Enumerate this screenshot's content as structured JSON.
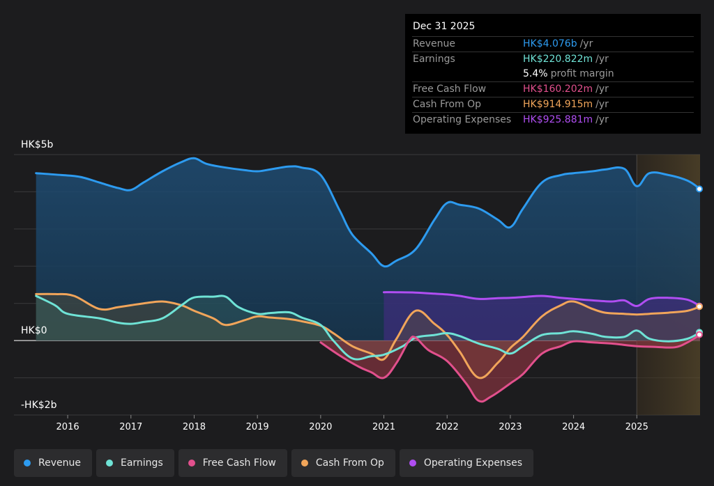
{
  "tooltip": {
    "date": "Dec 31 2025",
    "rows": [
      {
        "label": "Revenue",
        "value": "HK$4.076b",
        "unit": "/yr",
        "color": "#2d9bf0"
      },
      {
        "label": "Earnings",
        "value": "HK$220.822m",
        "unit": "/yr",
        "color": "#6fe3d6"
      },
      {
        "label": "",
        "value": "5.4%",
        "unit": "profit margin",
        "color": "#ffffff"
      },
      {
        "label": "Free Cash Flow",
        "value": "HK$160.202m",
        "unit": "/yr",
        "color": "#e2508d"
      },
      {
        "label": "Cash From Op",
        "value": "HK$914.915m",
        "unit": "/yr",
        "color": "#f1a55a"
      },
      {
        "label": "Operating Expenses",
        "value": "HK$925.881m",
        "unit": "/yr",
        "color": "#b04ef2"
      }
    ]
  },
  "legend": [
    {
      "label": "Revenue",
      "color": "#2d9bf0"
    },
    {
      "label": "Earnings",
      "color": "#6fe3d6"
    },
    {
      "label": "Free Cash Flow",
      "color": "#e2508d"
    },
    {
      "label": "Cash From Op",
      "color": "#f1a55a"
    },
    {
      "label": "Operating Expenses",
      "color": "#b04ef2"
    }
  ],
  "chart_data": {
    "type": "area",
    "y_labels": [
      "HK$5b",
      "HK$0",
      "-HK$2b"
    ],
    "ylim": [
      -2,
      5
    ],
    "xlim": [
      2015.15,
      2026.0
    ],
    "x_ticks": [
      2016,
      2017,
      2018,
      2019,
      2020,
      2021,
      2022,
      2023,
      2024,
      2025
    ],
    "x_tick_labels": [
      "2016",
      "2017",
      "2018",
      "2019",
      "2020",
      "2021",
      "2022",
      "2023",
      "2024",
      "2025"
    ],
    "forecast_start": 2025.0,
    "grid": true,
    "series": [
      {
        "name": "Revenue",
        "color": "#2d9bf0",
        "x": [
          2015.5,
          2015.9,
          2016.2,
          2016.5,
          2016.8,
          2017.0,
          2017.2,
          2017.5,
          2017.8,
          2018.0,
          2018.2,
          2018.5,
          2018.8,
          2019.0,
          2019.2,
          2019.5,
          2019.7,
          2020.0,
          2020.3,
          2020.5,
          2020.8,
          2021.0,
          2021.2,
          2021.5,
          2021.8,
          2022.0,
          2022.2,
          2022.5,
          2022.8,
          2023.0,
          2023.2,
          2023.5,
          2023.8,
          2024.0,
          2024.3,
          2024.5,
          2024.8,
          2025.0,
          2025.2,
          2025.5,
          2025.8,
          2026.0
        ],
        "values": [
          4.5,
          4.45,
          4.4,
          4.25,
          4.1,
          4.05,
          4.25,
          4.55,
          4.8,
          4.9,
          4.75,
          4.65,
          4.58,
          4.55,
          4.6,
          4.68,
          4.65,
          4.45,
          3.5,
          2.85,
          2.35,
          2.0,
          2.15,
          2.45,
          3.25,
          3.7,
          3.65,
          3.55,
          3.25,
          3.05,
          3.55,
          4.25,
          4.45,
          4.5,
          4.55,
          4.6,
          4.62,
          4.15,
          4.5,
          4.45,
          4.3,
          4.076
        ]
      },
      {
        "name": "Earnings",
        "color": "#6fe3d6",
        "x": [
          2015.5,
          2015.8,
          2016.0,
          2016.5,
          2016.8,
          2017.0,
          2017.2,
          2017.5,
          2017.8,
          2018.0,
          2018.3,
          2018.5,
          2018.7,
          2019.0,
          2019.2,
          2019.5,
          2019.7,
          2020.0,
          2020.2,
          2020.5,
          2020.8,
          2021.0,
          2021.3,
          2021.5,
          2021.8,
          2022.0,
          2022.2,
          2022.5,
          2022.8,
          2023.0,
          2023.2,
          2023.5,
          2023.8,
          2024.0,
          2024.3,
          2024.5,
          2024.8,
          2025.0,
          2025.2,
          2025.5,
          2025.8,
          2026.0
        ],
        "values": [
          1.2,
          0.95,
          0.72,
          0.6,
          0.48,
          0.45,
          0.5,
          0.6,
          0.95,
          1.16,
          1.18,
          1.18,
          0.9,
          0.72,
          0.74,
          0.76,
          0.62,
          0.42,
          0.0,
          -0.48,
          -0.42,
          -0.38,
          -0.15,
          0.08,
          0.15,
          0.2,
          0.12,
          -0.08,
          -0.22,
          -0.35,
          -0.15,
          0.15,
          0.2,
          0.25,
          0.18,
          0.1,
          0.1,
          0.27,
          0.05,
          -0.02,
          0.05,
          0.221
        ]
      },
      {
        "name": "Free Cash Flow",
        "color": "#e2508d",
        "x": [
          2020.0,
          2020.3,
          2020.6,
          2020.8,
          2021.0,
          2021.2,
          2021.4,
          2021.5,
          2021.7,
          2022.0,
          2022.3,
          2022.5,
          2022.7,
          2023.0,
          2023.2,
          2023.5,
          2023.8,
          2024.0,
          2024.3,
          2024.6,
          2025.0,
          2025.3,
          2025.6,
          2025.8,
          2026.0
        ],
        "values": [
          -0.05,
          -0.4,
          -0.7,
          -0.85,
          -1.0,
          -0.6,
          0.0,
          0.08,
          -0.25,
          -0.55,
          -1.15,
          -1.62,
          -1.5,
          -1.15,
          -0.9,
          -0.35,
          -0.15,
          -0.02,
          -0.05,
          -0.08,
          -0.15,
          -0.17,
          -0.18,
          -0.05,
          0.16
        ]
      },
      {
        "name": "Cash From Op",
        "color": "#f1a55a",
        "x": [
          2015.5,
          2015.8,
          2016.1,
          2016.5,
          2016.8,
          2017.0,
          2017.2,
          2017.5,
          2017.8,
          2018.0,
          2018.3,
          2018.5,
          2018.8,
          2019.0,
          2019.2,
          2019.5,
          2019.7,
          2020.0,
          2020.2,
          2020.5,
          2020.8,
          2021.0,
          2021.2,
          2021.5,
          2021.8,
          2022.0,
          2022.2,
          2022.5,
          2022.8,
          2023.0,
          2023.2,
          2023.5,
          2023.8,
          2024.0,
          2024.3,
          2024.5,
          2024.8,
          2025.0,
          2025.2,
          2025.5,
          2025.8,
          2026.0
        ],
        "values": [
          1.25,
          1.25,
          1.2,
          0.85,
          0.9,
          0.95,
          1.0,
          1.05,
          0.95,
          0.8,
          0.6,
          0.42,
          0.55,
          0.65,
          0.62,
          0.58,
          0.52,
          0.4,
          0.2,
          -0.15,
          -0.35,
          -0.5,
          0.05,
          0.8,
          0.45,
          0.15,
          -0.3,
          -1.0,
          -0.6,
          -0.2,
          0.1,
          0.65,
          0.95,
          1.05,
          0.85,
          0.75,
          0.72,
          0.7,
          0.72,
          0.75,
          0.8,
          0.915
        ]
      },
      {
        "name": "Operating Expenses",
        "color": "#b04ef2",
        "x": [
          2021.0,
          2021.2,
          2021.5,
          2021.8,
          2022.0,
          2022.2,
          2022.5,
          2022.8,
          2023.0,
          2023.2,
          2023.5,
          2023.8,
          2024.0,
          2024.3,
          2024.6,
          2024.8,
          2025.0,
          2025.2,
          2025.5,
          2025.8,
          2026.0
        ],
        "values": [
          1.3,
          1.3,
          1.29,
          1.26,
          1.24,
          1.2,
          1.12,
          1.14,
          1.15,
          1.17,
          1.2,
          1.15,
          1.12,
          1.08,
          1.05,
          1.08,
          0.93,
          1.12,
          1.15,
          1.1,
          0.926
        ]
      }
    ]
  }
}
